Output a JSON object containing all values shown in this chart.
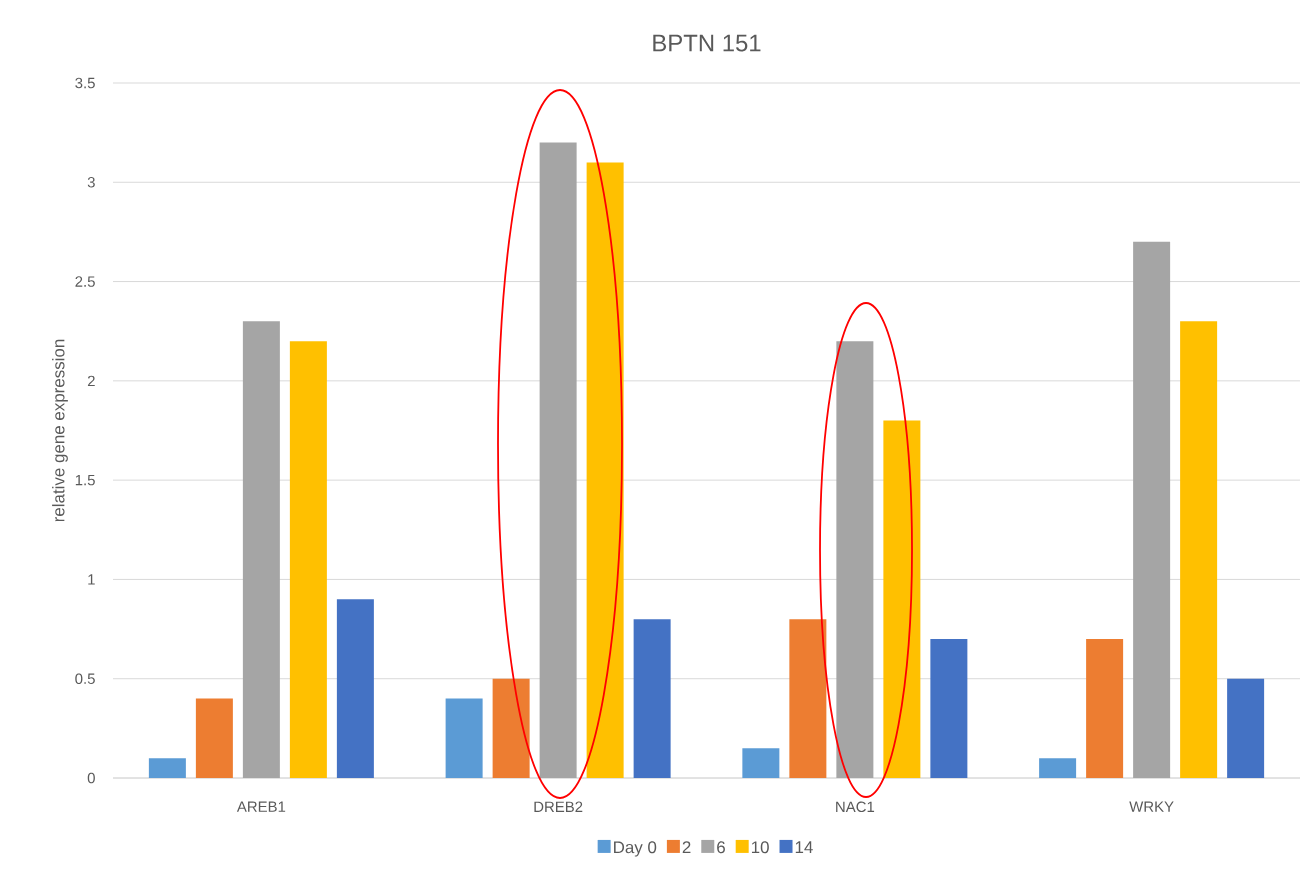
{
  "chart_data": {
    "type": "bar",
    "title": "BPTN 151",
    "ylabel": "relative gene expression",
    "categories": [
      "AREB1",
      "DREB2",
      "NAC1",
      "WRKY"
    ],
    "series": [
      {
        "name": "Day 0",
        "color": "#5b9bd5",
        "values": [
          0.1,
          0.4,
          0.15,
          0.1
        ]
      },
      {
        "name": "2",
        "color": "#ed7d31",
        "values": [
          0.4,
          0.5,
          0.8,
          0.7
        ]
      },
      {
        "name": "6",
        "color": "#a5a5a5",
        "values": [
          2.3,
          3.2,
          2.2,
          2.7
        ]
      },
      {
        "name": "10",
        "color": "#ffc000",
        "values": [
          2.2,
          3.1,
          1.8,
          2.3
        ]
      },
      {
        "name": "14",
        "color": "#4472c4",
        "values": [
          0.9,
          0.8,
          0.7,
          0.5
        ]
      }
    ],
    "ylim": [
      0,
      3.5
    ],
    "yticks": [
      0,
      0.5,
      1,
      1.5,
      2,
      2.5,
      3,
      3.5
    ],
    "grid": "y",
    "legend": "bottom"
  }
}
